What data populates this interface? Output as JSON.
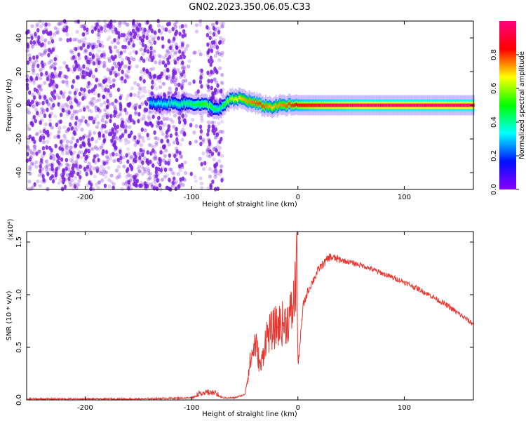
{
  "title": "GN02.2023.350.06.05.C33",
  "colors": {
    "snr_line": "#e8352e",
    "spectrum_ridge": "#e8352e",
    "noise_purple": "#7a1fe0"
  },
  "chart_data": [
    {
      "type": "heatmap",
      "xlabel": "Height of straight line (km)",
      "ylabel": "Frequency (Hz)",
      "xlim": [
        -255,
        165
      ],
      "ylim": [
        -50,
        50
      ],
      "xticks": [
        -200,
        -100,
        0,
        100
      ],
      "yticks": [
        -40,
        -20,
        0,
        20,
        40
      ],
      "colorbar": {
        "label": "Normalized spectral amplitude",
        "range": [
          0,
          1
        ],
        "ticks": [
          "0.0",
          "0.2",
          "0.4",
          "0.6",
          "0.8"
        ],
        "colormap": [
          "#8a00ff",
          "#0010ff",
          "#00ffff",
          "#00ff00",
          "#ffff00",
          "#ff0000",
          "#ff0080"
        ]
      },
      "noise_region_x": [
        -255,
        -70
      ],
      "signal_onset_x": -140,
      "ridge": {
        "x": [
          -140,
          -100,
          -85,
          -75,
          -65,
          -55,
          -45,
          -35,
          -25,
          -15,
          0,
          20,
          60,
          100,
          165
        ],
        "frequency": [
          1,
          1,
          0,
          -3,
          3,
          4,
          2,
          0,
          -1,
          0,
          0,
          0,
          0,
          0,
          0
        ],
        "amplitude": [
          0.3,
          0.45,
          0.55,
          0.4,
          0.6,
          0.7,
          0.75,
          0.8,
          0.7,
          0.75,
          0.85,
          0.9,
          0.95,
          0.95,
          0.95
        ]
      }
    },
    {
      "type": "line",
      "xlabel": "Height of straight line (km)",
      "ylabel": "SNR (10 * v/v)",
      "y_multiplier_label": "(x10⁴)",
      "xlim": [
        -255,
        165
      ],
      "ylim": [
        0,
        1.6
      ],
      "xticks": [
        -200,
        -100,
        0,
        100
      ],
      "yticks": [
        "0.0",
        "0.5",
        "1.0",
        "1.5"
      ],
      "series": [
        {
          "x": [
            -255,
            -150,
            -100,
            -90,
            -80,
            -70,
            -60,
            -50,
            -45,
            -40,
            -35,
            -30,
            -20,
            -10,
            -5,
            -2,
            -1,
            0,
            5,
            10,
            20,
            30,
            40,
            60,
            80,
            100,
            120,
            140,
            165
          ],
          "y": [
            0.01,
            0.01,
            0.02,
            0.06,
            0.06,
            0.02,
            0.02,
            0.05,
            0.35,
            0.55,
            0.3,
            0.6,
            0.7,
            0.75,
            0.85,
            1.1,
            1.6,
            0.3,
            0.9,
            1.05,
            1.25,
            1.36,
            1.33,
            1.28,
            1.2,
            1.12,
            1.02,
            0.9,
            0.72
          ]
        }
      ]
    }
  ]
}
